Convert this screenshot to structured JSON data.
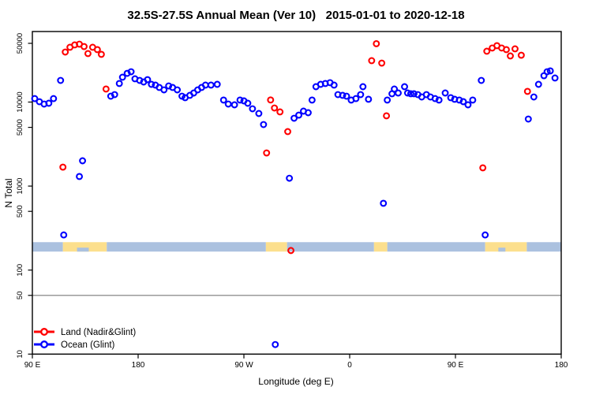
{
  "title": "32.5S-27.5S Annual Mean (Ver 10)   2015-01-01 to 2020-12-18",
  "legend": {
    "items": [
      {
        "label": "Land (Nadir&Glint)",
        "color": "#FF0000"
      },
      {
        "label": "Ocean (Glint)",
        "color": "#0000FF"
      }
    ]
  },
  "chart_data": {
    "type": "scatter",
    "title": "32.5S-27.5S Annual Mean (Ver 10)   2015-01-01 to 2020-12-18",
    "xlabel": "Longitude (deg E)",
    "ylabel": "N Total",
    "x_axis": {
      "range_deg": [
        90,
        540
      ],
      "note": "longitude axis wraps: 90E to 180, 90W, 0, 90E, 180",
      "ticks": [
        {
          "pos": 90,
          "label": "90 E"
        },
        {
          "pos": 180,
          "label": "180"
        },
        {
          "pos": 270,
          "label": "90 W"
        },
        {
          "pos": 360,
          "label": "0"
        },
        {
          "pos": 450,
          "label": "90 E"
        },
        {
          "pos": 540,
          "label": "180"
        }
      ]
    },
    "y_axis": {
      "scale": "log",
      "range": [
        9,
        69000
      ],
      "ticks": [
        {
          "value": 50000,
          "label": "50000"
        },
        {
          "value": 10000,
          "label": "10000"
        },
        {
          "value": 5000,
          "label": "5000"
        },
        {
          "value": 1000,
          "label": "1000"
        },
        {
          "value": 500,
          "label": "500"
        },
        {
          "value": 100,
          "label": "100"
        },
        {
          "value": 50,
          "label": "50"
        },
        {
          "value": 10,
          "label": "10"
        }
      ]
    },
    "reference_line": {
      "value": 50,
      "color": "#787878"
    },
    "land_ocean_band": {
      "top_value": 215,
      "bottom_value": 166,
      "ocean_color": "#ABC1DF",
      "land_color": "#FCDF8D",
      "segments": [
        {
          "from": 90,
          "to": 116,
          "type": "ocean"
        },
        {
          "from": 116,
          "to": 153.3,
          "type": "land"
        },
        {
          "from": 153.3,
          "to": 288.7,
          "type": "ocean"
        },
        {
          "from": 288.7,
          "to": 306.7,
          "type": "land"
        },
        {
          "from": 306.7,
          "to": 380.7,
          "type": "ocean"
        },
        {
          "from": 380.7,
          "to": 392,
          "type": "land"
        },
        {
          "from": 392,
          "to": 475.3,
          "type": "ocean"
        },
        {
          "from": 475.3,
          "to": 510.7,
          "type": "land"
        },
        {
          "from": 510.7,
          "to": 540,
          "type": "ocean"
        }
      ],
      "ocean_notches": [
        {
          "from": 128,
          "to": 138
        },
        {
          "from": 486.5,
          "to": 492.5
        }
      ]
    },
    "legend_position": "bottom-left",
    "series": [
      {
        "name": "Land (Nadir&Glint)",
        "color": "#FF0000",
        "marker": "open-circle",
        "points": [
          [
            116,
            1680
          ],
          [
            118,
            39400
          ],
          [
            122,
            44900
          ],
          [
            126,
            47900
          ],
          [
            130,
            48900
          ],
          [
            134,
            45800
          ],
          [
            137.3,
            37800
          ],
          [
            141.3,
            44900
          ],
          [
            145.3,
            42100
          ],
          [
            148.7,
            37000
          ],
          [
            152.7,
            14300
          ],
          [
            289.3,
            2480
          ],
          [
            292.7,
            10600
          ],
          [
            296,
            8500
          ],
          [
            300.7,
            7640
          ],
          [
            307.3,
            4450
          ],
          [
            310,
            171
          ],
          [
            378.7,
            31100
          ],
          [
            382.7,
            49500
          ],
          [
            387.3,
            29100
          ],
          [
            391.3,
            6860
          ],
          [
            473.3,
            1650
          ],
          [
            476.7,
            40300
          ],
          [
            481.3,
            44000
          ],
          [
            485.3,
            46900
          ],
          [
            489.3,
            44000
          ],
          [
            493.3,
            42100
          ],
          [
            496.7,
            35400
          ],
          [
            500.7,
            43000
          ],
          [
            506,
            36100
          ],
          [
            511.3,
            13400
          ]
        ]
      },
      {
        "name": "Ocean (Glint)",
        "color": "#0000FF",
        "marker": "open-circle",
        "points": [
          [
            92,
            11000
          ],
          [
            96,
            10100
          ],
          [
            100,
            9470
          ],
          [
            104,
            9680
          ],
          [
            108,
            11000
          ],
          [
            114,
            18100
          ],
          [
            116.7,
            262
          ],
          [
            130,
            1300
          ],
          [
            132.7,
            2000
          ],
          [
            156.7,
            11750
          ],
          [
            160,
            12270
          ],
          [
            164,
            16630
          ],
          [
            166.7,
            19760
          ],
          [
            170.7,
            21980
          ],
          [
            174,
            22960
          ],
          [
            177.3,
            18920
          ],
          [
            181.3,
            18100
          ],
          [
            184.7,
            17340
          ],
          [
            188,
            18490
          ],
          [
            191.3,
            16260
          ],
          [
            194.7,
            15920
          ],
          [
            198,
            14920
          ],
          [
            202,
            13970
          ],
          [
            206,
            15560
          ],
          [
            209.3,
            14920
          ],
          [
            213.3,
            13970
          ],
          [
            217.3,
            11750
          ],
          [
            220,
            11270
          ],
          [
            224,
            12020
          ],
          [
            227.3,
            12820
          ],
          [
            230.7,
            13970
          ],
          [
            234,
            14920
          ],
          [
            237.3,
            15920
          ],
          [
            242,
            15920
          ],
          [
            247.3,
            16260
          ],
          [
            252.7,
            10570
          ],
          [
            256.7,
            9470
          ],
          [
            262,
            9270
          ],
          [
            266.7,
            10570
          ],
          [
            270,
            10330
          ],
          [
            273.3,
            9680
          ],
          [
            277.3,
            8320
          ],
          [
            282.7,
            7310
          ],
          [
            286.7,
            5400
          ],
          [
            296.7,
            13
          ],
          [
            308.7,
            1240
          ],
          [
            312.7,
            6420
          ],
          [
            316.7,
            6990
          ],
          [
            320.7,
            7800
          ],
          [
            324.7,
            7470
          ],
          [
            328,
            10570
          ],
          [
            331.3,
            15240
          ],
          [
            335.3,
            16260
          ],
          [
            339.3,
            16630
          ],
          [
            343.3,
            17010
          ],
          [
            346.7,
            15920
          ],
          [
            350,
            12270
          ],
          [
            354,
            12020
          ],
          [
            357.3,
            11750
          ],
          [
            361.3,
            10570
          ],
          [
            365.3,
            11000
          ],
          [
            369.3,
            12270
          ],
          [
            371.3,
            15240
          ],
          [
            376,
            10800
          ],
          [
            388.7,
            624
          ],
          [
            392,
            10570
          ],
          [
            396,
            12550
          ],
          [
            398,
            14290
          ],
          [
            401.3,
            12820
          ],
          [
            406.7,
            15240
          ],
          [
            409.3,
            12820
          ],
          [
            412,
            12550
          ],
          [
            414.7,
            12550
          ],
          [
            418,
            12270
          ],
          [
            421.3,
            11500
          ],
          [
            425.3,
            12270
          ],
          [
            428.7,
            11500
          ],
          [
            432.7,
            11000
          ],
          [
            436,
            10570
          ],
          [
            441.3,
            12820
          ],
          [
            446,
            11270
          ],
          [
            449.3,
            10800
          ],
          [
            453.3,
            10570
          ],
          [
            456.7,
            10110
          ],
          [
            460.7,
            9270
          ],
          [
            464.7,
            10570
          ],
          [
            472,
            18100
          ],
          [
            475.3,
            262
          ],
          [
            512,
            6280
          ],
          [
            516.7,
            11500
          ],
          [
            520.7,
            16260
          ],
          [
            525.3,
            20600
          ],
          [
            528,
            22960
          ],
          [
            530.7,
            23500
          ],
          [
            534.7,
            19340
          ]
        ]
      }
    ]
  }
}
